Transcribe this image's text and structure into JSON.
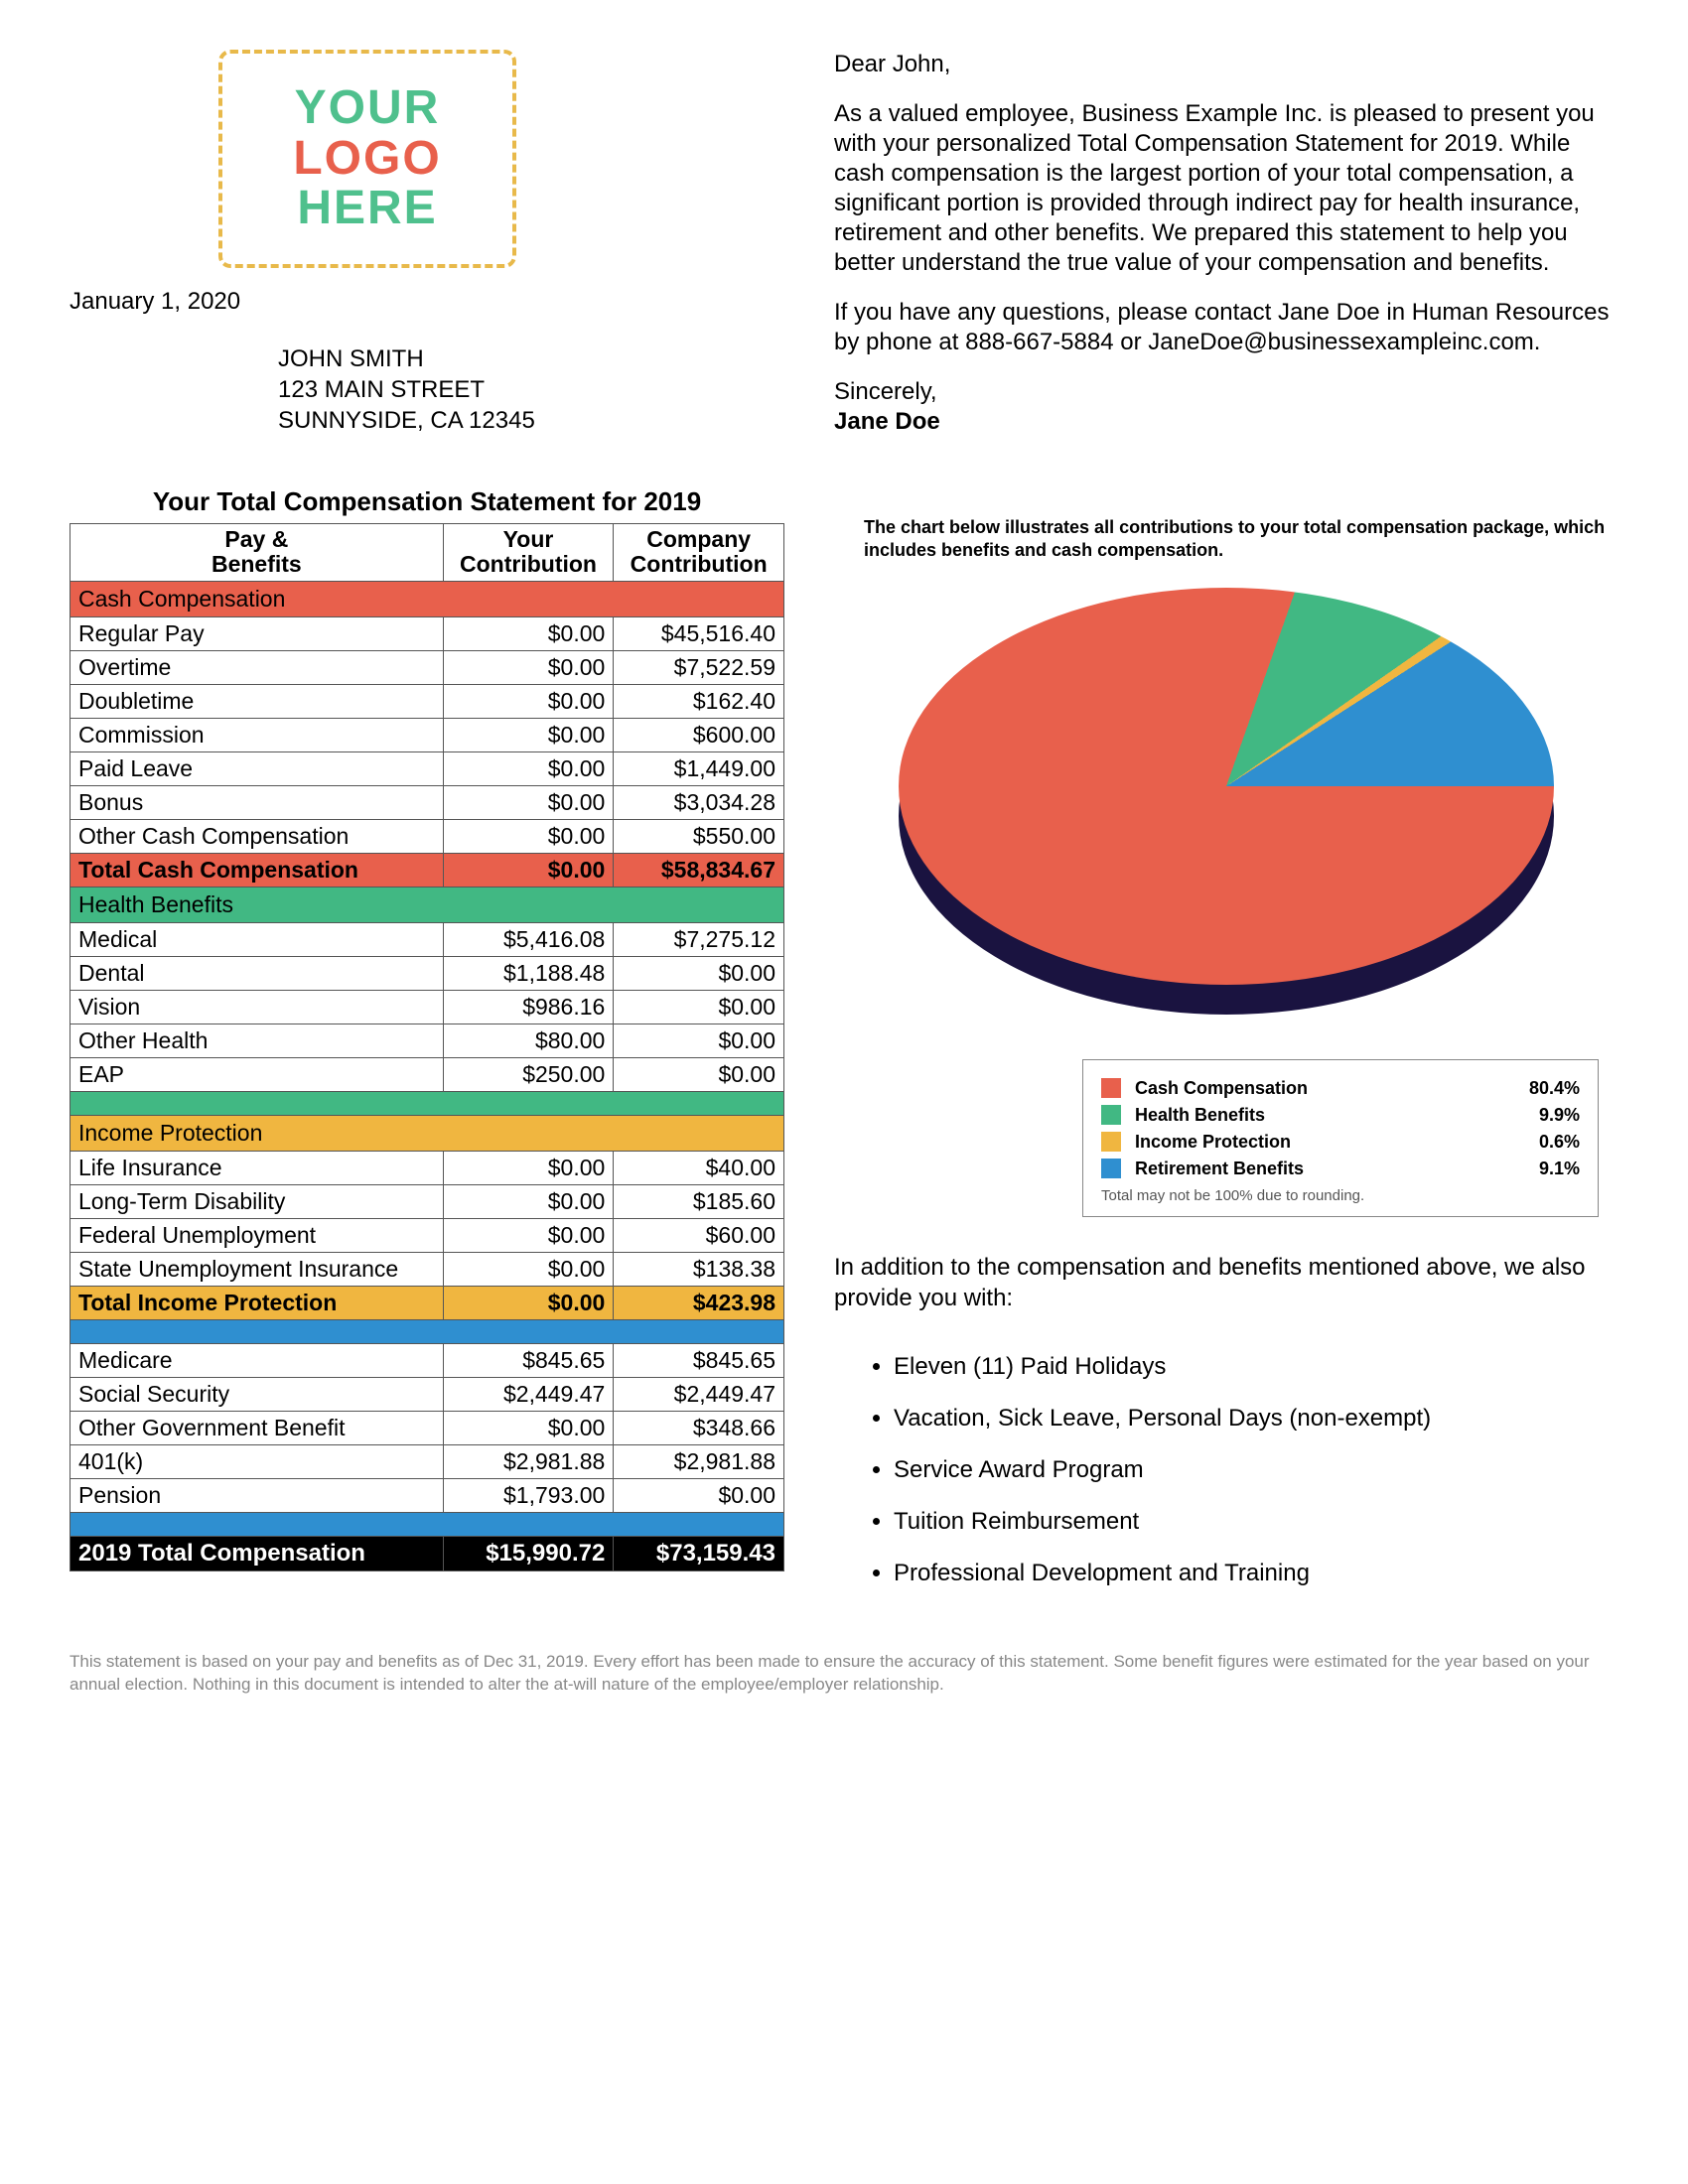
{
  "logo": {
    "line1": "YOUR",
    "line2": "LOGO",
    "line3": "HERE",
    "border_color": "#e8b94a",
    "color_outer": "#4fc08d",
    "color_mid": "#e8604c"
  },
  "date": "January 1, 2020",
  "recipient": {
    "name": "JOHN SMITH",
    "street": "123 MAIN STREET",
    "city": "SUNNYSIDE, CA 12345"
  },
  "letter": {
    "salutation": "Dear John,",
    "para1": "As a valued employee, Business Example Inc. is pleased to present you with your personalized Total Compensation Statement for 2019. While cash compensation is the largest portion of your total compensation, a significant portion is provided through indirect pay for health insurance, retirement and other benefits. We prepared this statement to help you better understand the true value of your compensation and benefits.",
    "para2": "If you have any questions, please contact Jane Doe in Human Resources by phone at 888-667-5884 or JaneDoe@businessexampleinc.com.",
    "closing": "Sincerely,",
    "signer": "Jane Doe"
  },
  "statement_title": "Your Total Compensation Statement for 2019",
  "table": {
    "columns": [
      "Pay & Benefits",
      "Your Contribution",
      "Company Contribution"
    ],
    "col1a": "Pay &",
    "col1b": "Benefits",
    "col2a": "Your",
    "col2b": "Contribution",
    "col3a": "Company",
    "col3b": "Contribution",
    "sections": {
      "cash": {
        "name": "Cash Compensation",
        "color": "#e8604c",
        "rows": [
          {
            "label": "Regular Pay",
            "your": "$0.00",
            "company": "$45,516.40"
          },
          {
            "label": "Overtime",
            "your": "$0.00",
            "company": "$7,522.59"
          },
          {
            "label": "Doubletime",
            "your": "$0.00",
            "company": "$162.40"
          },
          {
            "label": "Commission",
            "your": "$0.00",
            "company": "$600.00"
          },
          {
            "label": "Paid Leave",
            "your": "$0.00",
            "company": "$1,449.00"
          },
          {
            "label": "Bonus",
            "your": "$0.00",
            "company": "$3,034.28"
          },
          {
            "label": "Other Cash Compensation",
            "your": "$0.00",
            "company": "$550.00"
          }
        ],
        "subtotal": {
          "label": "Total Cash Compensation",
          "your": "$0.00",
          "company": "$58,834.67"
        }
      },
      "health": {
        "name": "Health Benefits",
        "color": "#41b883",
        "rows": [
          {
            "label": "Medical",
            "your": "$5,416.08",
            "company": "$7,275.12"
          },
          {
            "label": "Dental",
            "your": "$1,188.48",
            "company": "$0.00"
          },
          {
            "label": "Vision",
            "your": "$986.16",
            "company": "$0.00"
          },
          {
            "label": "Other Health",
            "your": "$80.00",
            "company": "$0.00"
          },
          {
            "label": "EAP",
            "your": "$250.00",
            "company": "$0.00"
          }
        ]
      },
      "income": {
        "name": "Income Protection",
        "color": "#f0b640",
        "rows": [
          {
            "label": "Life Insurance",
            "your": "$0.00",
            "company": "$40.00"
          },
          {
            "label": "Long-Term Disability",
            "your": "$0.00",
            "company": "$185.60"
          },
          {
            "label": "Federal Unemployment",
            "your": "$0.00",
            "company": "$60.00"
          },
          {
            "label": "State Unemployment Insurance",
            "your": "$0.00",
            "company": "$138.38"
          }
        ],
        "subtotal": {
          "label": "Total Income Protection",
          "your": "$0.00",
          "company": "$423.98"
        }
      },
      "retirement": {
        "color": "#2f8fd0",
        "rows": [
          {
            "label": "Medicare",
            "your": "$845.65",
            "company": "$845.65"
          },
          {
            "label": "Social Security",
            "your": "$2,449.47",
            "company": "$2,449.47"
          },
          {
            "label": "Other Government Benefit",
            "your": "$0.00",
            "company": "$348.66"
          },
          {
            "label": "401(k)",
            "your": "$2,981.88",
            "company": "$2,981.88"
          },
          {
            "label": "Pension",
            "your": "$1,793.00",
            "company": "$0.00"
          }
        ]
      }
    },
    "grand": {
      "label": "2019 Total Compensation",
      "your": "$15,990.72",
      "company": "$73,159.43"
    }
  },
  "chart": {
    "caption": "The chart below illustrates all contributions to your total compensation package, which includes benefits and cash compensation.",
    "type": "pie-3d",
    "slices": [
      {
        "label": "Cash Compensation",
        "pct": 80.4,
        "color": "#e8604c"
      },
      {
        "label": "Health Benefits",
        "pct": 9.9,
        "color": "#41b883"
      },
      {
        "label": "Income Protection",
        "pct": 0.6,
        "color": "#f0b640"
      },
      {
        "label": "Retirement Benefits",
        "pct": 9.1,
        "color": "#2f8fd0"
      }
    ],
    "legend_note": "Total may not be 100% due to rounding.",
    "shadow_color": "#1a1340"
  },
  "additional": {
    "intro": "In addition to the compensation and benefits mentioned above, we also provide you with:",
    "items": [
      "Eleven (11) Paid Holidays",
      "Vacation, Sick Leave, Personal Days (non-exempt)",
      "Service Award Program",
      "Tuition Reimbursement",
      "Professional Development and Training"
    ]
  },
  "disclaimer": "This statement is based on your pay and benefits as of Dec 31, 2019. Every effort has been made to ensure the accuracy of this statement. Some benefit figures were estimated for the year based on your annual election. Nothing in this document is intended to alter the at-will nature of the employee/employer relationship."
}
